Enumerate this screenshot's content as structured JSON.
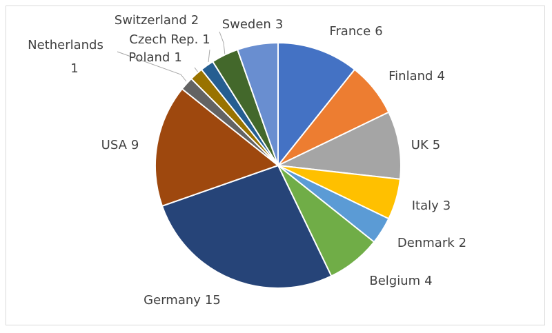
{
  "chart_data": {
    "type": "pie",
    "categories": [
      "France",
      "Finland",
      "UK",
      "Italy",
      "Denmark",
      "Belgium",
      "Germany",
      "USA",
      "Netherlands",
      "Poland",
      "Czech Rep.",
      "Switzerland",
      "Sweden"
    ],
    "values": [
      6,
      4,
      5,
      3,
      2,
      4,
      15,
      9,
      1,
      1,
      1,
      2,
      3
    ],
    "colors": [
      "#4472c4",
      "#ed7d31",
      "#a5a5a5",
      "#ffc000",
      "#5b9bd5",
      "#70ad47",
      "#264478",
      "#9e480e",
      "#636363",
      "#997300",
      "#255e91",
      "#43682b",
      "#698ed0"
    ]
  }
}
